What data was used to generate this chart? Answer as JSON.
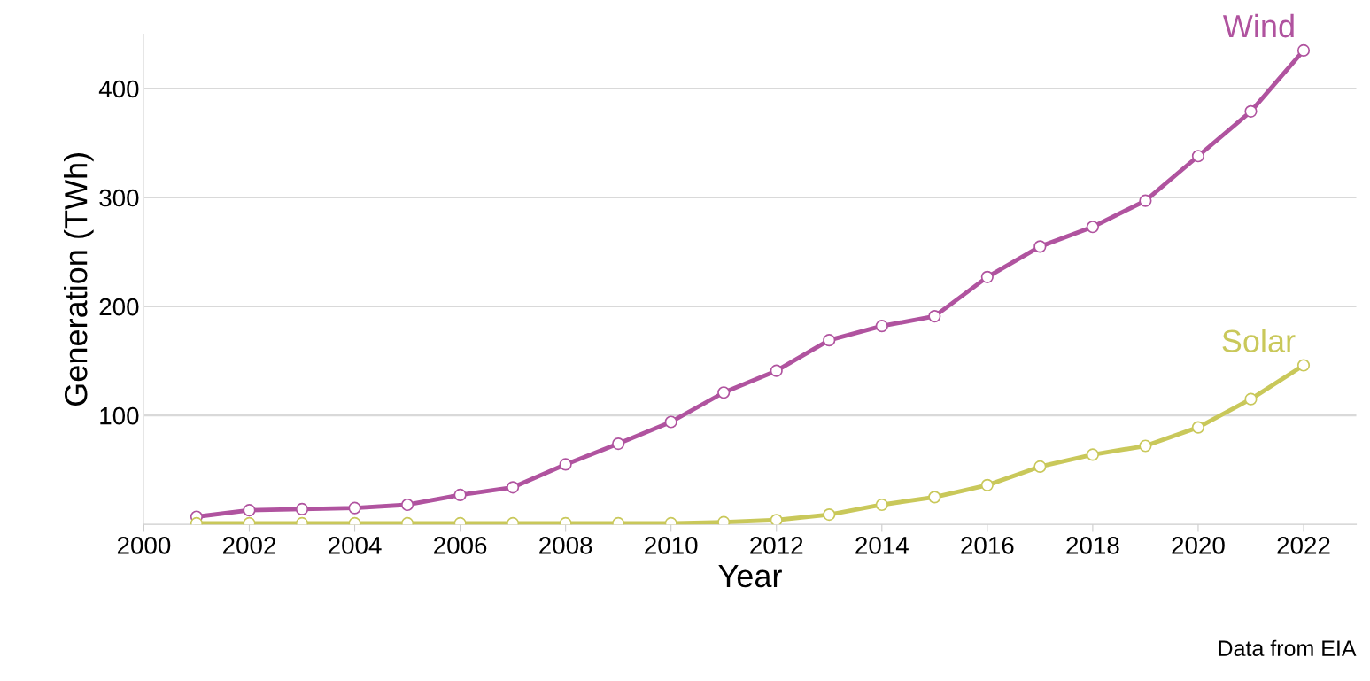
{
  "chart_data": {
    "type": "line",
    "xlabel": "Year",
    "ylabel": "Generation (TWh)",
    "x": [
      2001,
      2002,
      2003,
      2004,
      2005,
      2006,
      2007,
      2008,
      2009,
      2010,
      2011,
      2012,
      2013,
      2014,
      2015,
      2016,
      2017,
      2018,
      2019,
      2020,
      2021,
      2022
    ],
    "series": [
      {
        "name": "Wind",
        "color": "#b0539f",
        "values": [
          7,
          13,
          14,
          15,
          18,
          27,
          34,
          55,
          74,
          94,
          121,
          141,
          169,
          182,
          191,
          227,
          255,
          273,
          297,
          338,
          379,
          435
        ]
      },
      {
        "name": "Solar",
        "color": "#c9c85a",
        "values": [
          1,
          1,
          1,
          1,
          1,
          1,
          1,
          1,
          1,
          1,
          2,
          4,
          9,
          18,
          25,
          36,
          53,
          64,
          72,
          89,
          115,
          146
        ]
      }
    ],
    "xlim": [
      2000,
      2023
    ],
    "ylim": [
      0,
      450
    ],
    "xticks": [
      2000,
      2002,
      2004,
      2006,
      2008,
      2010,
      2012,
      2014,
      2016,
      2018,
      2020,
      2022
    ],
    "yticks": [
      100,
      200,
      300,
      400
    ],
    "grid": "y",
    "marker": "circle",
    "line_style": "solid",
    "legend": false,
    "annotations": [
      "Data from EIA"
    ]
  }
}
